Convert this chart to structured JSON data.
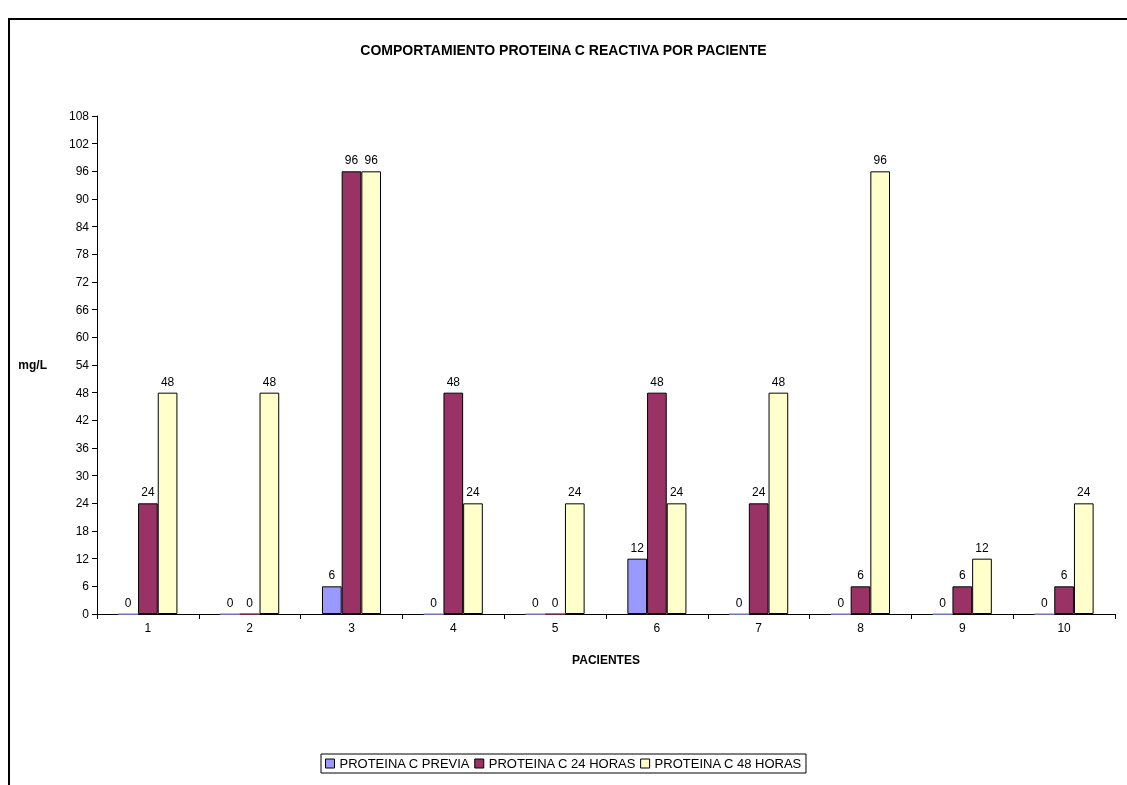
{
  "chart_data": {
    "type": "bar",
    "title": "COMPORTAMIENTO PROTEINA C REACTIVA POR PACIENTE",
    "xlabel": "PACIENTES",
    "ylabel": "mg/L",
    "categories": [
      "1",
      "2",
      "3",
      "4",
      "5",
      "6",
      "7",
      "8",
      "9",
      "10"
    ],
    "series": [
      {
        "name": "PROTEINA C PREVIA",
        "color": "#9999ff",
        "values": [
          0,
          0,
          6,
          0,
          0,
          12,
          0,
          0,
          0,
          0
        ]
      },
      {
        "name": "PROTEINA C 24 HORAS",
        "color": "#993366",
        "values": [
          24,
          0,
          96,
          48,
          0,
          48,
          24,
          6,
          6,
          6
        ]
      },
      {
        "name": "PROTEINA C 48 HORAS",
        "color": "#ffffcc",
        "values": [
          48,
          48,
          96,
          24,
          24,
          24,
          48,
          96,
          12,
          24
        ]
      }
    ],
    "ylim": [
      0,
      108
    ],
    "yticks": [
      0,
      6,
      12,
      18,
      24,
      30,
      36,
      42,
      48,
      54,
      60,
      66,
      72,
      78,
      84,
      90,
      96,
      102,
      108
    ],
    "grid": false,
    "legend": "bottom",
    "data_labels": true
  }
}
